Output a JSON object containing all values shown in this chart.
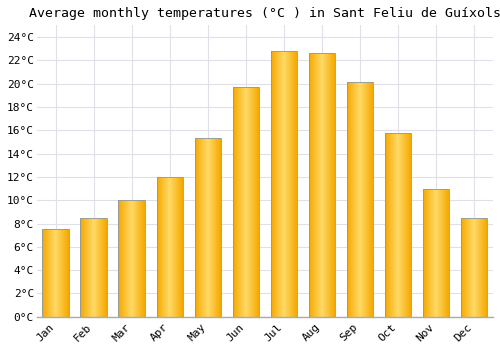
{
  "title": "Average monthly temperatures (°C ) in Sant Feliu de Guíxols",
  "months": [
    "Jan",
    "Feb",
    "Mar",
    "Apr",
    "May",
    "Jun",
    "Jul",
    "Aug",
    "Sep",
    "Oct",
    "Nov",
    "Dec"
  ],
  "values": [
    7.5,
    8.5,
    10.0,
    12.0,
    15.3,
    19.7,
    22.8,
    22.6,
    20.1,
    15.8,
    11.0,
    8.5
  ],
  "bar_color_center": "#FFD966",
  "bar_color_edge": "#F5A800",
  "bar_border_color": "#8899AA",
  "background_color": "#ffffff",
  "plot_bg_color": "#ffffff",
  "grid_color": "#e0e0e8",
  "ylim": [
    0,
    25
  ],
  "yticks": [
    0,
    2,
    4,
    6,
    8,
    10,
    12,
    14,
    16,
    18,
    20,
    22,
    24
  ],
  "title_fontsize": 9.5,
  "tick_fontsize": 8,
  "fig_width": 5.0,
  "fig_height": 3.5,
  "dpi": 100,
  "bar_width": 0.7
}
